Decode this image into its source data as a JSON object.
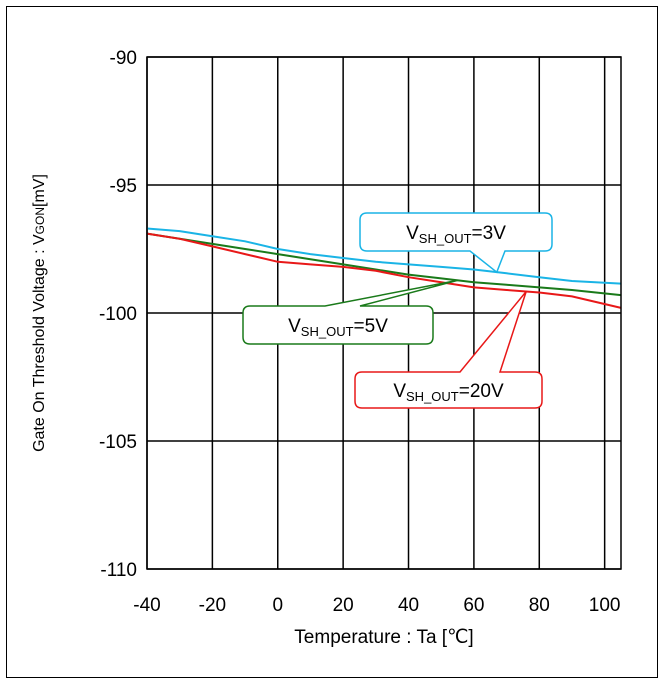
{
  "chart_data": {
    "type": "line",
    "title": "",
    "xlabel": "Temperature : Ta [℃]",
    "ylabel": {
      "main": "Gate On Threshold Voltage : V",
      "sub": "GON",
      "unit": "[mV]"
    },
    "xlim": [
      -40,
      105
    ],
    "ylim": [
      -110,
      -90
    ],
    "x_ticks": [
      -40,
      -20,
      0,
      20,
      40,
      60,
      80,
      100
    ],
    "y_ticks": [
      -90,
      -95,
      -100,
      -105,
      -110
    ],
    "grid": true,
    "series": [
      {
        "name": "VSH_OUT=3V",
        "label": {
          "v": "V",
          "sub": "SH_OUT",
          "rest": "=3V"
        },
        "color": "#1ab4e6",
        "x": [
          -40,
          -30,
          -20,
          -10,
          0,
          10,
          20,
          30,
          40,
          50,
          60,
          70,
          80,
          90,
          105
        ],
        "y": [
          -96.7,
          -96.8,
          -97.0,
          -97.2,
          -97.5,
          -97.7,
          -97.85,
          -98.0,
          -98.1,
          -98.2,
          -98.3,
          -98.45,
          -98.6,
          -98.75,
          -98.85
        ],
        "callout_at": 67
      },
      {
        "name": "VSH_OUT=5V",
        "label": {
          "v": "V",
          "sub": "SH_OUT",
          "rest": "=5V"
        },
        "color": "#1a7a1a",
        "x": [
          -40,
          -30,
          -20,
          -10,
          0,
          10,
          20,
          30,
          40,
          50,
          60,
          70,
          80,
          90,
          105
        ],
        "y": [
          -96.9,
          -97.1,
          -97.3,
          -97.5,
          -97.7,
          -97.9,
          -98.1,
          -98.3,
          -98.5,
          -98.65,
          -98.8,
          -98.9,
          -99.0,
          -99.1,
          -99.3
        ],
        "callout_at": 55
      },
      {
        "name": "VSH_OUT=20V",
        "label": {
          "v": "V",
          "sub": "SH_OUT",
          "rest": "=20V"
        },
        "color": "#e81818",
        "x": [
          -40,
          -30,
          -20,
          -10,
          0,
          10,
          20,
          30,
          40,
          50,
          60,
          70,
          80,
          90,
          105
        ],
        "y": [
          -96.9,
          -97.1,
          -97.4,
          -97.7,
          -98.0,
          -98.1,
          -98.2,
          -98.35,
          -98.6,
          -98.8,
          -99.0,
          -99.1,
          -99.2,
          -99.35,
          -99.8
        ],
        "callout_at": 76
      }
    ]
  }
}
